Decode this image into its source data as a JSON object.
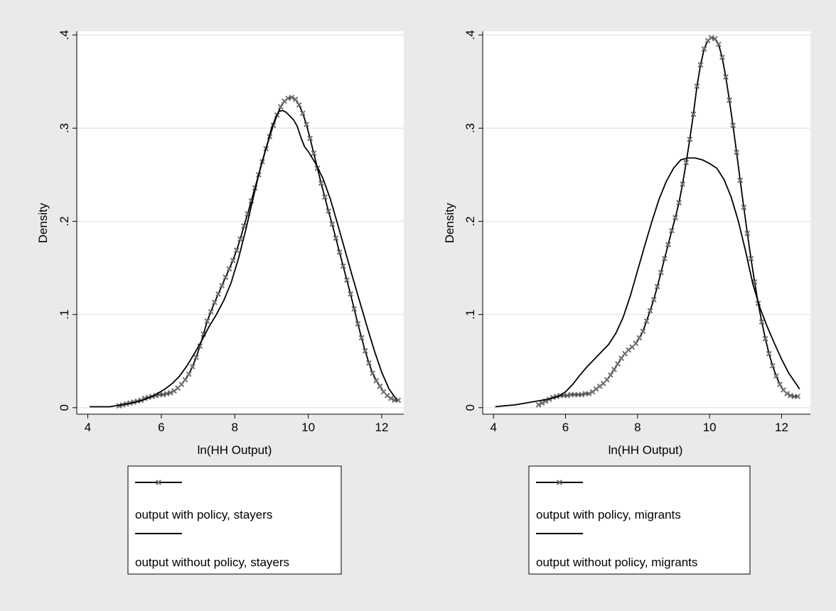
{
  "figure": {
    "background": "#eaeaea",
    "plot_background": "#ffffff",
    "grid_color": "#e3e3e3"
  },
  "chart_data": [
    {
      "type": "line",
      "xlabel": "ln(HH Output)",
      "ylabel": "Density",
      "xlim": [
        3.7,
        12.6
      ],
      "ylim": [
        -0.007,
        0.404
      ],
      "x_ticks": [
        4,
        6,
        8,
        10,
        12
      ],
      "y_ticks": [
        0,
        0.1,
        0.2,
        0.3,
        0.4
      ],
      "x_tick_labels": [
        "4",
        "6",
        "8",
        "10",
        "12"
      ],
      "y_tick_labels": [
        "0",
        ".1",
        ".2",
        ".3",
        ".4"
      ],
      "grid": true,
      "legend_position": "bottom",
      "series": [
        {
          "name": "output with policy, stayers",
          "marker": "x",
          "color": "#000000",
          "marker_color": "#707070",
          "x": [
            4.85,
            4.95,
            5.05,
            5.15,
            5.25,
            5.35,
            5.45,
            5.55,
            5.65,
            5.75,
            5.85,
            5.95,
            6.05,
            6.15,
            6.25,
            6.35,
            6.45,
            6.55,
            6.65,
            6.75,
            6.85,
            6.95,
            7.05,
            7.15,
            7.25,
            7.35,
            7.45,
            7.55,
            7.65,
            7.75,
            7.85,
            7.95,
            8.05,
            8.15,
            8.25,
            8.35,
            8.45,
            8.55,
            8.65,
            8.75,
            8.85,
            8.95,
            9.05,
            9.15,
            9.25,
            9.35,
            9.45,
            9.55,
            9.65,
            9.75,
            9.85,
            9.95,
            10.05,
            10.15,
            10.25,
            10.35,
            10.45,
            10.55,
            10.65,
            10.75,
            10.85,
            10.95,
            11.05,
            11.15,
            11.25,
            11.35,
            11.45,
            11.55,
            11.65,
            11.75,
            11.85,
            11.95,
            12.05,
            12.15,
            12.25,
            12.35,
            12.45
          ],
          "y": [
            0.002,
            0.003,
            0.004,
            0.005,
            0.006,
            0.007,
            0.008,
            0.01,
            0.011,
            0.012,
            0.013,
            0.014,
            0.014,
            0.015,
            0.016,
            0.018,
            0.021,
            0.025,
            0.03,
            0.036,
            0.044,
            0.054,
            0.066,
            0.079,
            0.093,
            0.103,
            0.113,
            0.122,
            0.131,
            0.14,
            0.149,
            0.158,
            0.169,
            0.181,
            0.195,
            0.208,
            0.222,
            0.236,
            0.25,
            0.264,
            0.278,
            0.291,
            0.303,
            0.314,
            0.323,
            0.329,
            0.332,
            0.333,
            0.331,
            0.325,
            0.316,
            0.304,
            0.289,
            0.273,
            0.257,
            0.241,
            0.226,
            0.211,
            0.197,
            0.182,
            0.167,
            0.152,
            0.137,
            0.122,
            0.106,
            0.09,
            0.075,
            0.061,
            0.048,
            0.037,
            0.029,
            0.023,
            0.017,
            0.013,
            0.01,
            0.008,
            0.008
          ]
        },
        {
          "name": "output without policy, stayers",
          "marker": "none",
          "color": "#000000",
          "x": [
            4.05,
            4.3,
            4.6,
            4.9,
            5.2,
            5.5,
            5.8,
            6.1,
            6.3,
            6.5,
            6.7,
            6.9,
            7.1,
            7.3,
            7.5,
            7.7,
            7.9,
            8.1,
            8.3,
            8.5,
            8.7,
            8.9,
            9.0,
            9.1,
            9.2,
            9.3,
            9.4,
            9.5,
            9.6,
            9.7,
            9.8,
            9.9,
            10.0,
            10.2,
            10.4,
            10.6,
            10.8,
            11.0,
            11.2,
            11.4,
            11.6,
            11.8,
            12.0,
            12.2,
            12.4
          ],
          "y": [
            0.001,
            0.001,
            0.001,
            0.003,
            0.005,
            0.008,
            0.013,
            0.02,
            0.026,
            0.034,
            0.045,
            0.058,
            0.072,
            0.087,
            0.1,
            0.115,
            0.134,
            0.16,
            0.191,
            0.225,
            0.258,
            0.285,
            0.3,
            0.31,
            0.318,
            0.319,
            0.317,
            0.313,
            0.309,
            0.302,
            0.29,
            0.28,
            0.275,
            0.262,
            0.246,
            0.224,
            0.197,
            0.169,
            0.141,
            0.114,
            0.087,
            0.061,
            0.038,
            0.02,
            0.009
          ]
        }
      ]
    },
    {
      "type": "line",
      "xlabel": "ln(HH Output)",
      "ylabel": "Density",
      "xlim": [
        3.7,
        12.8
      ],
      "ylim": [
        -0.007,
        0.404
      ],
      "x_ticks": [
        4,
        6,
        8,
        10,
        12
      ],
      "y_ticks": [
        0,
        0.1,
        0.2,
        0.3,
        0.4
      ],
      "x_tick_labels": [
        "4",
        "6",
        "8",
        "10",
        "12"
      ],
      "y_tick_labels": [
        "0",
        ".1",
        ".2",
        ".3",
        ".4"
      ],
      "grid": true,
      "legend_position": "bottom",
      "series": [
        {
          "name": "output with policy, migrants",
          "marker": "x",
          "color": "#000000",
          "marker_color": "#707070",
          "x": [
            5.25,
            5.35,
            5.45,
            5.55,
            5.65,
            5.75,
            5.85,
            5.95,
            6.05,
            6.15,
            6.25,
            6.35,
            6.45,
            6.55,
            6.65,
            6.75,
            6.85,
            6.95,
            7.05,
            7.15,
            7.25,
            7.35,
            7.45,
            7.55,
            7.65,
            7.75,
            7.85,
            7.95,
            8.05,
            8.15,
            8.25,
            8.35,
            8.45,
            8.55,
            8.65,
            8.75,
            8.85,
            8.95,
            9.05,
            9.15,
            9.25,
            9.35,
            9.45,
            9.55,
            9.65,
            9.75,
            9.85,
            9.95,
            10.05,
            10.15,
            10.25,
            10.35,
            10.45,
            10.55,
            10.65,
            10.75,
            10.85,
            10.95,
            11.05,
            11.15,
            11.25,
            11.35,
            11.45,
            11.55,
            11.65,
            11.75,
            11.85,
            11.95,
            12.05,
            12.15,
            12.25,
            12.35,
            12.45
          ],
          "y": [
            0.003,
            0.005,
            0.007,
            0.009,
            0.011,
            0.012,
            0.013,
            0.013,
            0.013,
            0.014,
            0.014,
            0.014,
            0.014,
            0.015,
            0.015,
            0.017,
            0.02,
            0.023,
            0.026,
            0.03,
            0.035,
            0.041,
            0.047,
            0.053,
            0.058,
            0.062,
            0.065,
            0.069,
            0.075,
            0.082,
            0.093,
            0.104,
            0.116,
            0.13,
            0.145,
            0.16,
            0.175,
            0.19,
            0.204,
            0.22,
            0.24,
            0.263,
            0.288,
            0.315,
            0.345,
            0.368,
            0.385,
            0.394,
            0.397,
            0.396,
            0.39,
            0.376,
            0.355,
            0.33,
            0.303,
            0.274,
            0.244,
            0.215,
            0.187,
            0.16,
            0.135,
            0.112,
            0.092,
            0.074,
            0.058,
            0.045,
            0.034,
            0.025,
            0.019,
            0.015,
            0.013,
            0.012,
            0.012
          ]
        },
        {
          "name": "output without policy, migrants",
          "marker": "none",
          "color": "#000000",
          "x": [
            4.05,
            4.3,
            4.6,
            4.9,
            5.2,
            5.5,
            5.8,
            6.0,
            6.2,
            6.4,
            6.6,
            6.8,
            7.0,
            7.2,
            7.4,
            7.6,
            7.8,
            8.0,
            8.2,
            8.4,
            8.6,
            8.8,
            9.0,
            9.2,
            9.4,
            9.6,
            9.8,
            10.0,
            10.2,
            10.4,
            10.6,
            10.8,
            11.0,
            11.2,
            11.4,
            11.6,
            11.8,
            12.0,
            12.2,
            12.5
          ],
          "y": [
            0.001,
            0.002,
            0.003,
            0.005,
            0.007,
            0.009,
            0.012,
            0.017,
            0.025,
            0.035,
            0.044,
            0.052,
            0.06,
            0.068,
            0.08,
            0.097,
            0.12,
            0.147,
            0.174,
            0.2,
            0.224,
            0.243,
            0.257,
            0.266,
            0.268,
            0.268,
            0.266,
            0.262,
            0.257,
            0.245,
            0.226,
            0.2,
            0.168,
            0.133,
            0.107,
            0.087,
            0.069,
            0.052,
            0.037,
            0.02
          ]
        }
      ]
    }
  ]
}
